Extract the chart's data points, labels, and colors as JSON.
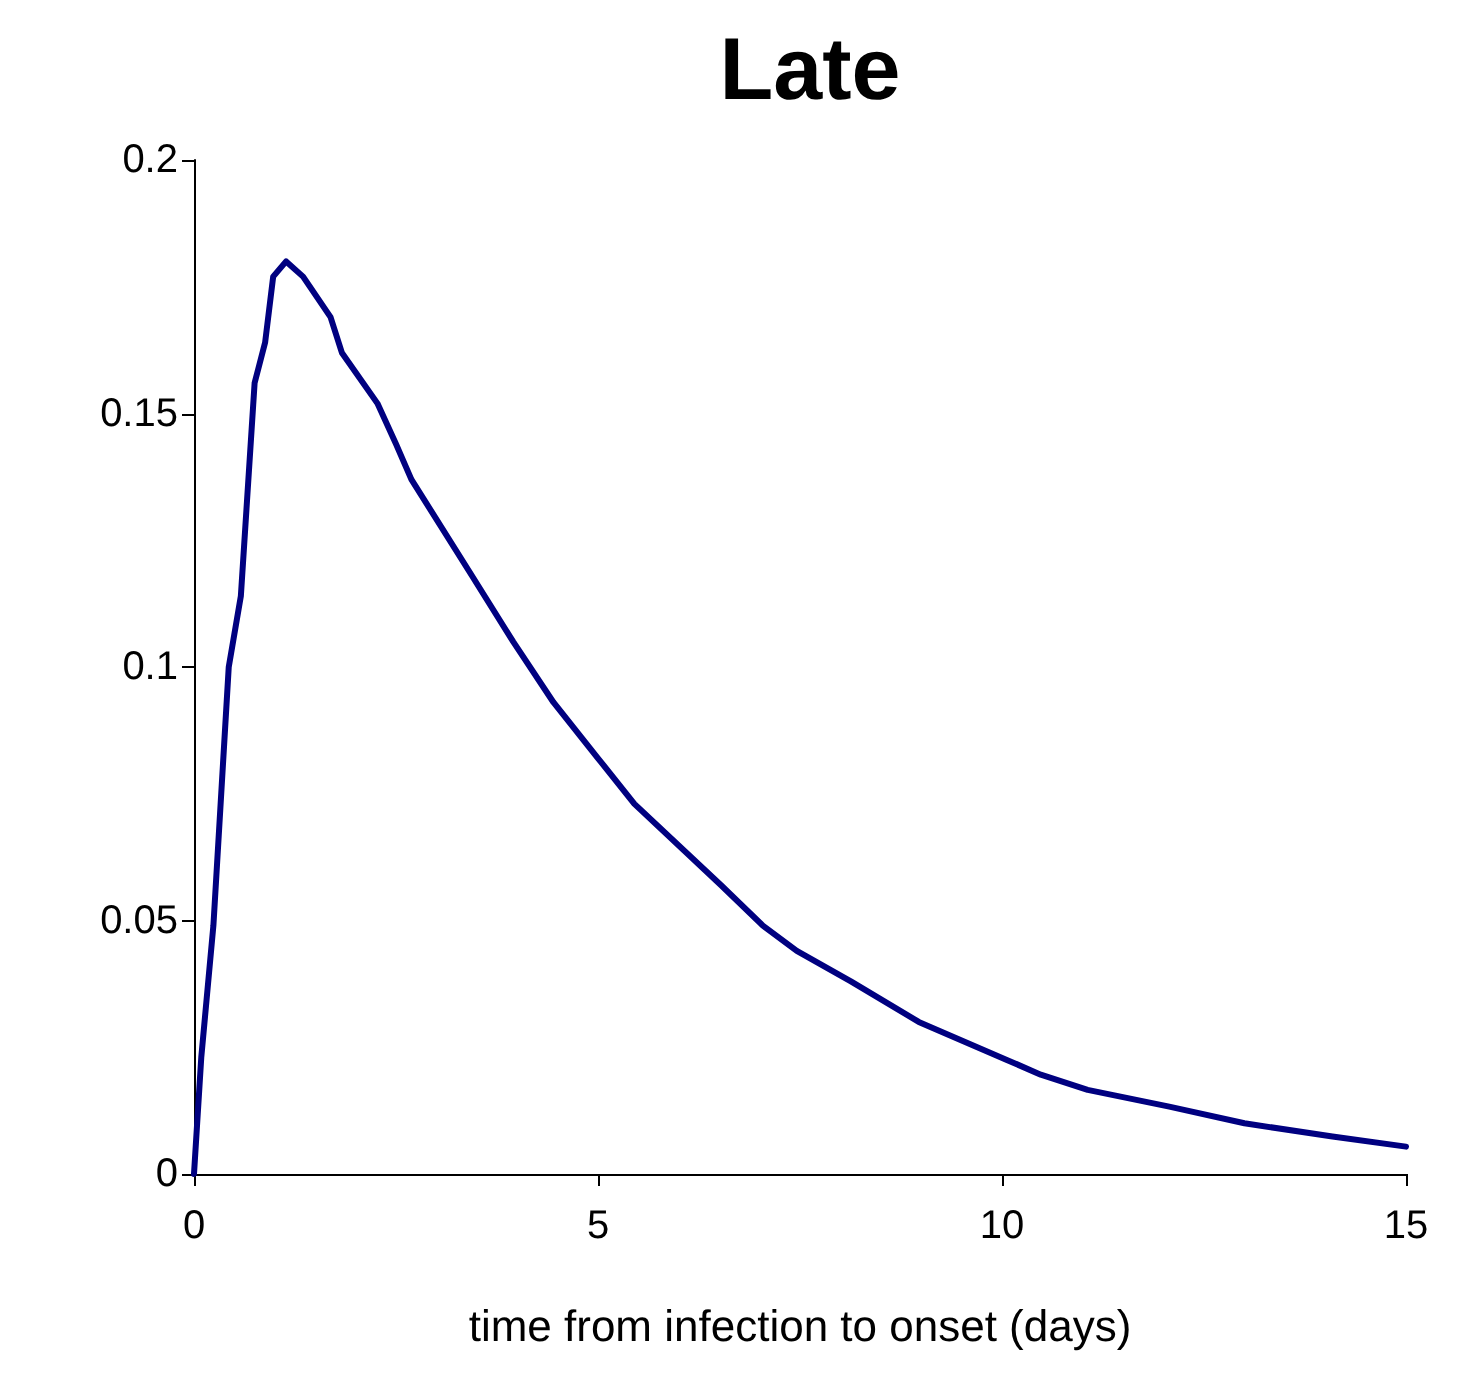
{
  "chart_data": {
    "type": "line",
    "title": "Late",
    "xlabel": "time from infection to onset (days)",
    "series": [
      {
        "color": "#000080",
        "x": [
          0,
          0.09,
          0.24,
          0.43,
          0.58,
          0.75,
          0.88,
          0.98,
          1.14,
          1.35,
          1.69,
          1.83,
          2.27,
          2.5,
          2.69,
          3.44,
          3.95,
          4.45,
          5.0,
          5.45,
          6.52,
          7.04,
          7.46,
          8.13,
          8.97,
          10.06,
          10.48,
          11.06,
          12.07,
          13.0,
          14.09,
          15
        ],
        "values": [
          0,
          0.023,
          0.049,
          0.1,
          0.114,
          0.156,
          0.164,
          0.177,
          0.18,
          0.177,
          0.169,
          0.162,
          0.152,
          0.144,
          0.137,
          0.118,
          0.105,
          0.093,
          0.082,
          0.073,
          0.057,
          0.049,
          0.044,
          0.038,
          0.03,
          0.0225,
          0.0196,
          0.0166,
          0.0133,
          0.01,
          0.0074,
          0.0054
        ]
      }
    ],
    "xlim": [
      0,
      15
    ],
    "xticks": [
      0,
      5,
      10,
      15
    ],
    "ylim": [
      0,
      0.2
    ],
    "yticks": [
      0,
      0.05,
      0.1,
      0.15,
      0.2
    ],
    "grid": false,
    "marker": "none",
    "line_style": "solid"
  }
}
